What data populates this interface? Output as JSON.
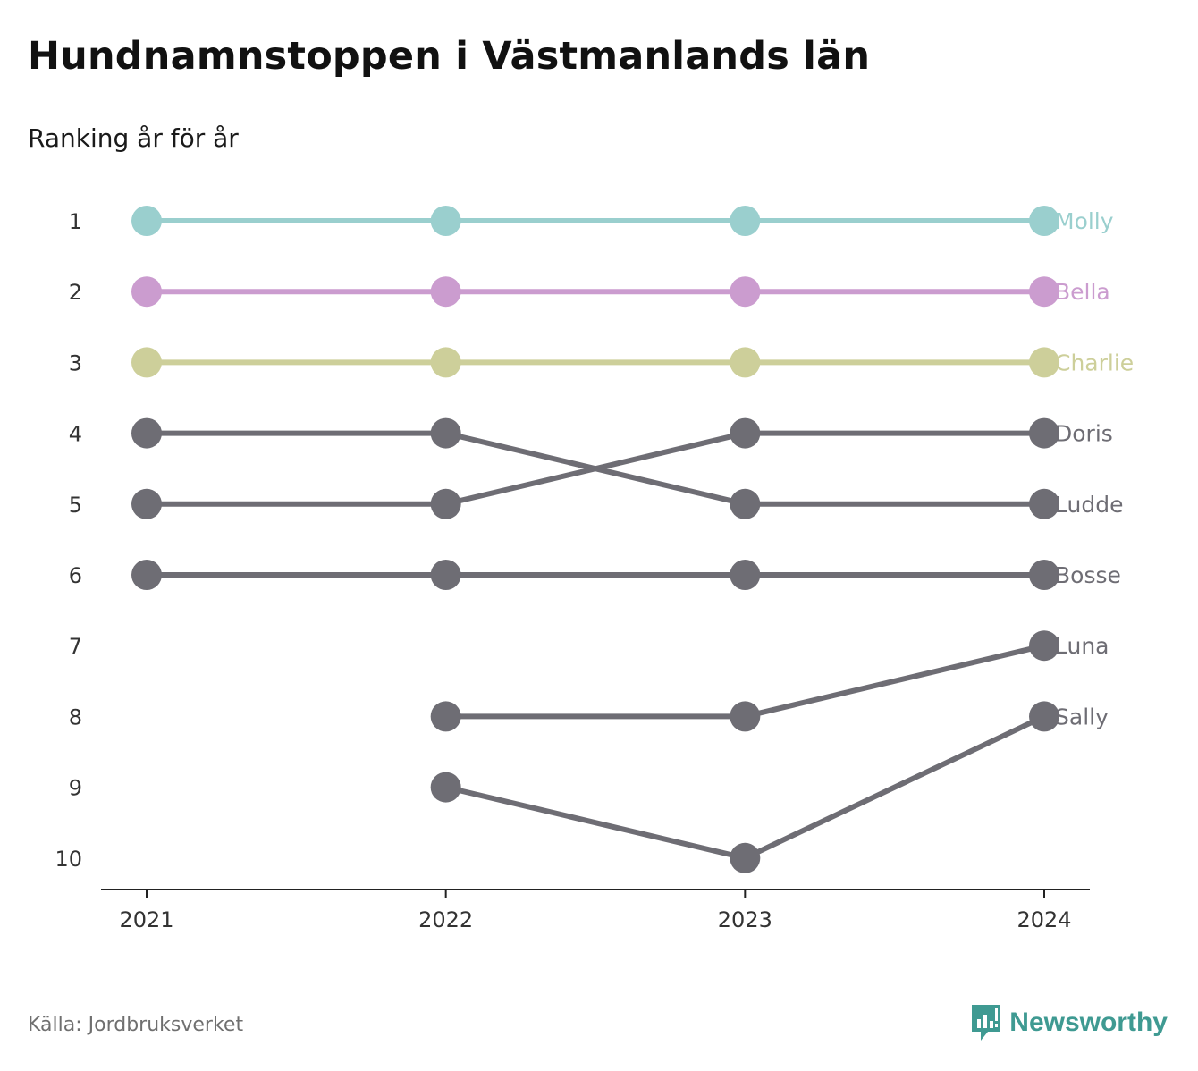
{
  "header": {
    "title": "Hundnamnstoppen i Västmanlands län",
    "subtitle": "Ranking år för år"
  },
  "footer": {
    "source": "Källa: Jordbruksverket",
    "brand": "Newsworthy",
    "brand_icon": "newsworthy-logo-icon"
  },
  "chart_data": {
    "type": "line",
    "x": [
      2021,
      2022,
      2023,
      2024
    ],
    "ylim": [
      1,
      10
    ],
    "y_reversed": true,
    "y_ticks": [
      1,
      2,
      3,
      4,
      5,
      6,
      7,
      8,
      9,
      10
    ],
    "grid": false,
    "series": [
      {
        "name": "Molly",
        "color": "#9acfce",
        "values": [
          1,
          1,
          1,
          1
        ]
      },
      {
        "name": "Bella",
        "color": "#cb9ccf",
        "values": [
          2,
          2,
          2,
          2
        ]
      },
      {
        "name": "Charlie",
        "color": "#cdcf9a",
        "values": [
          3,
          3,
          3,
          3
        ]
      },
      {
        "name": "Doris",
        "color": "#6e6d74",
        "values": [
          5,
          5,
          4,
          4
        ]
      },
      {
        "name": "Ludde",
        "color": "#6e6d74",
        "values": [
          4,
          4,
          5,
          5
        ]
      },
      {
        "name": "Bosse",
        "color": "#6e6d74",
        "values": [
          6,
          6,
          6,
          6
        ]
      },
      {
        "name": "Luna",
        "color": "#6e6d74",
        "values": [
          null,
          8,
          8,
          7
        ]
      },
      {
        "name": "Sally",
        "color": "#6e6d74",
        "values": [
          null,
          9,
          10,
          8
        ]
      }
    ]
  }
}
